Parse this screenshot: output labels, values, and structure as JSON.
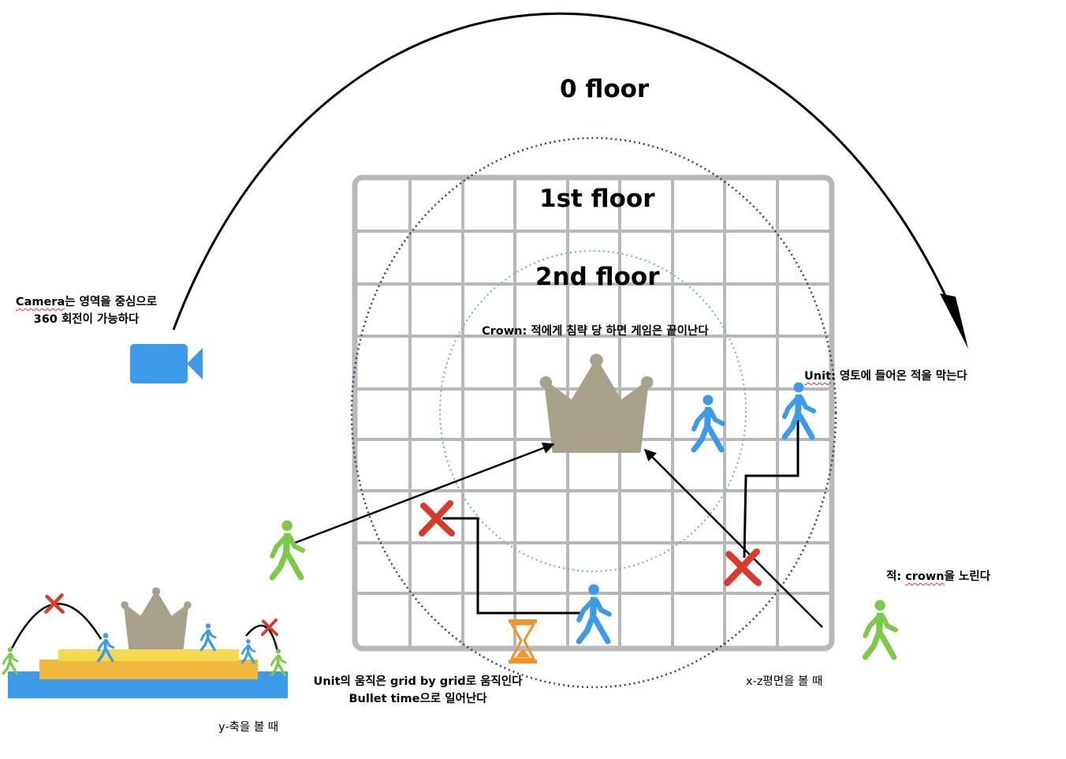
{
  "floors": {
    "floor0": "0 floor",
    "floor1": "1st floor",
    "floor2": "2nd floor"
  },
  "camera": {
    "icon": "video-camera-icon",
    "note_word": "Camera",
    "note_rest": "는 영역을 중심으로",
    "note_line2": "360 회전이 가능하다"
  },
  "crown": {
    "icon": "crown-icon",
    "note": "Crown: 적에게 침략 당 하면 게임은 끝이난다"
  },
  "unit": {
    "icon": "walking-person-icon",
    "note_word": "Unit",
    "note_rest": ": 영토에 들어온 적을 막는다",
    "move_line1": "Unit의 움직은 grid by grid로 움직인다",
    "move_line2": "Bullet time으로 일어난다"
  },
  "enemy": {
    "note_prefix": "적: ",
    "note_word": "crown",
    "note_rest": "을 노린다"
  },
  "views": {
    "xz_plane": "x-z평면을 볼 때",
    "y_axis": "y-축을 볼 때"
  },
  "colors": {
    "unit": "#3d9ae8",
    "enemy": "#7ac94a",
    "crown": "#a7a18a",
    "blocked": "#d83a2e",
    "hourglass": "#f0932b",
    "platform_top": "#f5d94e",
    "platform_mid": "#f0b93e",
    "ground": "#3d9ae8",
    "grid": "#b8b8b8"
  }
}
